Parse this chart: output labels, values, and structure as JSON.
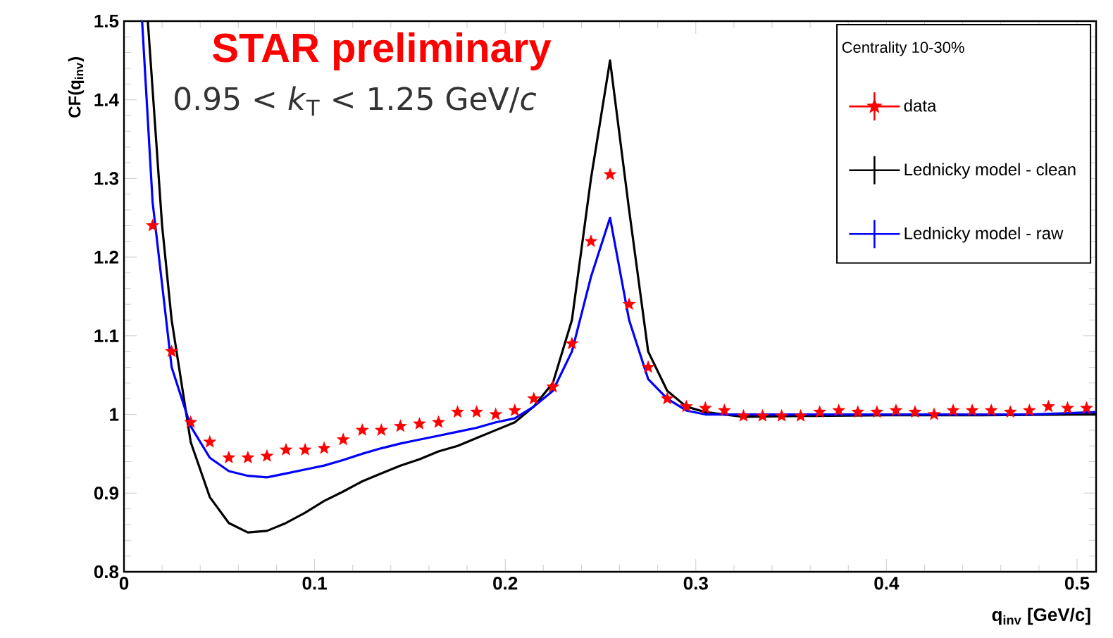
{
  "chart_data": {
    "type": "line",
    "xlabel": "q$_{inv}$ [GeV/c]",
    "ylabel": "CF(q$_{inv}$)",
    "legend_title": "Centrality 10-30%",
    "annotations": [
      "STAR preliminary",
      "0.95 < *k*$_{T}$ < 1.25 GeV/*c*"
    ],
    "xlim": [
      0,
      0.51
    ],
    "ylim": [
      0.8,
      1.5
    ],
    "xticks": [
      0,
      0.1,
      0.2,
      0.3,
      0.4,
      0.5
    ],
    "yticks": [
      0.8,
      0.9,
      1,
      1.1,
      1.2,
      1.3,
      1.4,
      1.5
    ],
    "grid": false,
    "legend": "top right",
    "series": [
      {
        "name": "data",
        "type": "scatter",
        "marker": "star",
        "color": "#ff0000",
        "x": [
          0.015,
          0.025,
          0.035,
          0.045,
          0.055,
          0.065,
          0.075,
          0.085,
          0.095,
          0.105,
          0.115,
          0.125,
          0.135,
          0.145,
          0.155,
          0.165,
          0.175,
          0.185,
          0.195,
          0.205,
          0.215,
          0.225,
          0.235,
          0.245,
          0.255,
          0.265,
          0.275,
          0.285,
          0.295,
          0.305,
          0.315,
          0.325,
          0.335,
          0.345,
          0.355,
          0.365,
          0.375,
          0.385,
          0.395,
          0.405,
          0.415,
          0.425,
          0.435,
          0.445,
          0.455,
          0.465,
          0.475,
          0.485,
          0.495,
          0.505
        ],
        "values": [
          1.24,
          1.08,
          0.99,
          0.965,
          0.945,
          0.945,
          0.947,
          0.955,
          0.955,
          0.957,
          0.968,
          0.98,
          0.98,
          0.985,
          0.988,
          0.99,
          1.003,
          1.003,
          1.0,
          1.005,
          1.02,
          1.035,
          1.09,
          1.22,
          1.305,
          1.14,
          1.06,
          1.02,
          1.01,
          1.008,
          1.005,
          0.998,
          0.998,
          0.998,
          0.998,
          1.003,
          1.005,
          1.003,
          1.003,
          1.005,
          1.003,
          1.0,
          1.005,
          1.005,
          1.005,
          1.003,
          1.005,
          1.01,
          1.008,
          1.008
        ]
      },
      {
        "name": "Lednicky model - clean",
        "marker": "none",
        "color": "#000000",
        "x": [
          0.0125,
          0.02,
          0.025,
          0.035,
          0.045,
          0.055,
          0.065,
          0.075,
          0.085,
          0.095,
          0.105,
          0.115,
          0.125,
          0.135,
          0.145,
          0.155,
          0.165,
          0.175,
          0.185,
          0.195,
          0.205,
          0.215,
          0.225,
          0.235,
          0.245,
          0.255,
          0.265,
          0.275,
          0.285,
          0.295,
          0.305,
          0.315,
          0.325,
          0.35,
          0.4,
          0.45,
          0.51
        ],
        "values": [
          1.5,
          1.24,
          1.12,
          0.965,
          0.895,
          0.862,
          0.85,
          0.852,
          0.862,
          0.875,
          0.89,
          0.902,
          0.915,
          0.925,
          0.935,
          0.943,
          0.953,
          0.96,
          0.97,
          0.98,
          0.99,
          1.01,
          1.04,
          1.12,
          1.3,
          1.45,
          1.26,
          1.08,
          1.03,
          1.01,
          1.003,
          1.0,
          0.997,
          0.998,
          0.999,
          0.999,
          1.0
        ]
      },
      {
        "name": "Lednicky model - raw",
        "marker": "none",
        "color": "#0000ff",
        "x": [
          0.0095,
          0.015,
          0.025,
          0.035,
          0.045,
          0.055,
          0.065,
          0.075,
          0.085,
          0.095,
          0.105,
          0.115,
          0.125,
          0.135,
          0.145,
          0.155,
          0.165,
          0.175,
          0.185,
          0.195,
          0.205,
          0.215,
          0.225,
          0.235,
          0.245,
          0.255,
          0.265,
          0.275,
          0.285,
          0.295,
          0.305,
          0.35,
          0.4,
          0.475,
          0.51
        ],
        "values": [
          1.5,
          1.27,
          1.06,
          0.985,
          0.945,
          0.928,
          0.922,
          0.92,
          0.925,
          0.93,
          0.935,
          0.942,
          0.95,
          0.957,
          0.963,
          0.968,
          0.973,
          0.978,
          0.983,
          0.99,
          0.995,
          1.01,
          1.03,
          1.08,
          1.175,
          1.25,
          1.12,
          1.045,
          1.02,
          1.005,
          1.0,
          1.0,
          1.0,
          1.0,
          1.003
        ]
      }
    ]
  }
}
